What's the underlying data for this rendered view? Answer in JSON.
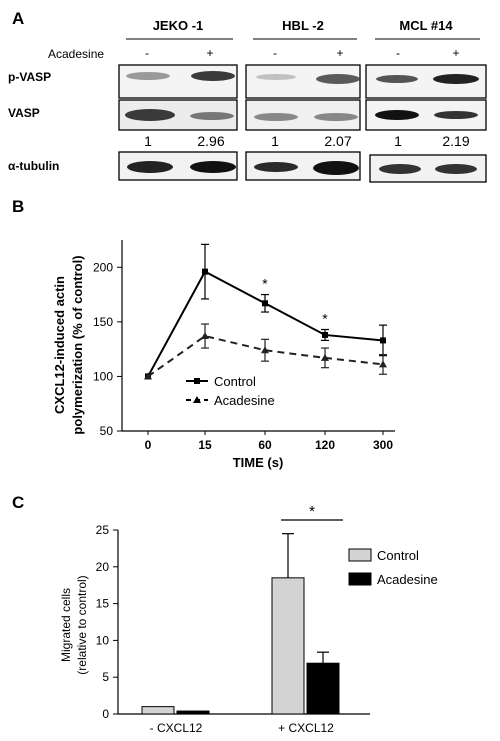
{
  "panels": {
    "a": "A",
    "b": "B",
    "c": "C"
  },
  "blot": {
    "groups": [
      "JEKO -1",
      "HBL -2",
      "MCL #14"
    ],
    "treatment_label": "Acadesine",
    "lane_signs": [
      "-",
      "+"
    ],
    "row_labels": [
      "p-VASP",
      "VASP",
      "α-tubulin"
    ],
    "ratios": [
      [
        "1",
        "2.96"
      ],
      [
        "1",
        "2.07"
      ],
      [
        "1",
        "2.19"
      ]
    ]
  },
  "chart_data": [
    {
      "type": "line",
      "x": [
        "0",
        "15",
        "60",
        "120",
        "300"
      ],
      "xlabel": "TIME (s)",
      "ylabel_line1": "CXCL12-induced actin",
      "ylabel_line2": "polymerization (% of control)",
      "ylim": [
        50,
        225
      ],
      "yticks": [
        50,
        100,
        150,
        200
      ],
      "grid": false,
      "legend_position": "bottom-left",
      "significance": [
        "*",
        "*"
      ],
      "significance_at": [
        "60",
        "120"
      ],
      "series": [
        {
          "name": "Control",
          "values": [
            100,
            196,
            167,
            138,
            133
          ],
          "errors": [
            0,
            25,
            8,
            5,
            14
          ],
          "style": "solid",
          "marker": "square"
        },
        {
          "name": "Acadesine",
          "values": [
            100,
            137,
            124,
            117,
            111
          ],
          "errors": [
            0,
            11,
            10,
            9,
            9
          ],
          "style": "dashed",
          "marker": "triangle"
        }
      ]
    },
    {
      "type": "bar",
      "categories": [
        "- CXCL12",
        "+ CXCL12"
      ],
      "ylabel_line1": "Migrated cells",
      "ylabel_line2": "(relative to control)",
      "ylim": [
        0,
        25
      ],
      "yticks": [
        0,
        5,
        10,
        15,
        20,
        25
      ],
      "grid": false,
      "legend_position": "right",
      "significance": "*",
      "series": [
        {
          "name": "Control",
          "values": [
            1.0,
            18.5
          ],
          "errors": [
            0,
            6.0
          ],
          "color": "#d3d3d3"
        },
        {
          "name": "Acadesine",
          "values": [
            0.4,
            6.9
          ],
          "errors": [
            0,
            1.5
          ],
          "color": "#000000"
        }
      ]
    }
  ]
}
